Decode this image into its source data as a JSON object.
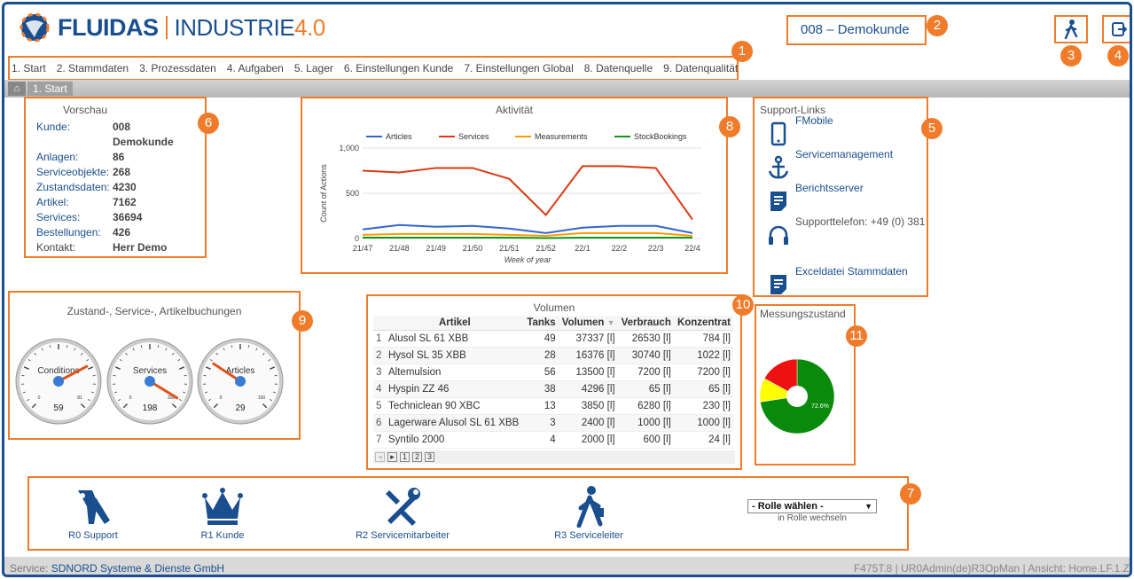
{
  "header": {
    "logo_brand": "FLUIDAS",
    "logo_product": "INDUSTRIE",
    "logo_version": "4.0",
    "customer": "008 – Demokunde",
    "user_icon": "walking-person-icon",
    "logout_icon": "logout-icon"
  },
  "badges": [
    "1",
    "2",
    "3",
    "4",
    "5",
    "6",
    "7",
    "8",
    "9",
    "10",
    "11"
  ],
  "nav": {
    "items": [
      "1. Start",
      "2. Stammdaten",
      "3. Prozessdaten",
      "4. Aufgaben",
      "5. Lager",
      "6. Einstellungen Kunde",
      "7. Einstellungen Global",
      "8. Datenquelle",
      "9. Datenqualität"
    ]
  },
  "breadcrumb": {
    "current": "1. Start"
  },
  "vorschau": {
    "title": "Vorschau",
    "rows": [
      {
        "k": "Kunde:",
        "v": "008 Demokunde"
      },
      {
        "k": "Anlagen:",
        "v": "86"
      },
      {
        "k": "Serviceobjekte:",
        "v": "268"
      },
      {
        "k": "Zustandsdaten:",
        "v": "4230"
      },
      {
        "k": "Artikel:",
        "v": "7162"
      },
      {
        "k": "Services:",
        "v": "36694"
      },
      {
        "k": "Bestellungen:",
        "v": "426"
      },
      {
        "k": "Kontakt:",
        "v": "Herr Demo"
      }
    ]
  },
  "activity": {
    "title": "Aktivität",
    "chart_data": {
      "type": "line",
      "title": "Aktivität",
      "xlabel": "Week of year",
      "ylabel": "Count of Actions",
      "x": [
        "21/47",
        "21/48",
        "21/49",
        "21/50",
        "21/51",
        "21/52",
        "22/1",
        "22/2",
        "22/3",
        "22/4"
      ],
      "ylim": [
        0,
        1000
      ],
      "yticks": [
        "0",
        "500",
        "1,000"
      ],
      "series": [
        {
          "name": "Articles",
          "color": "#3366cc",
          "values": [
            100,
            150,
            130,
            140,
            110,
            60,
            120,
            140,
            140,
            60
          ]
        },
        {
          "name": "Services",
          "color": "#dc3912",
          "values": [
            750,
            730,
            780,
            780,
            660,
            260,
            800,
            800,
            780,
            210
          ]
        },
        {
          "name": "Measurements",
          "color": "#ff9900",
          "values": [
            40,
            50,
            50,
            50,
            40,
            30,
            60,
            60,
            60,
            30
          ]
        },
        {
          "name": "StockBookings",
          "color": "#109618",
          "values": [
            10,
            10,
            10,
            10,
            10,
            5,
            10,
            10,
            10,
            10
          ]
        }
      ],
      "legend": "top"
    }
  },
  "support": {
    "title": "Support-Links",
    "links": [
      {
        "label": "FMobile",
        "icon": "mobile-phone-icon"
      },
      {
        "label": "Servicemanagement",
        "icon": "anchor-icon"
      },
      {
        "label": "Berichtsserver",
        "icon": "document-icon"
      },
      {
        "label": "Supporttelefon: +49 (0) 381",
        "icon": "headset-icon"
      },
      {
        "label": "Exceldatei Stammdaten",
        "icon": "document-icon"
      }
    ]
  },
  "gauges": {
    "title": "Zustand-, Service-, Artikelbuchungen",
    "items": [
      {
        "label": "Conditions",
        "value": "59",
        "min": "0",
        "max": "81",
        "fraction": 0.73
      },
      {
        "label": "Services",
        "value": "198",
        "min": "0",
        "max": "208",
        "fraction": 0.95
      },
      {
        "label": "Articles",
        "value": "29",
        "min": "0",
        "max": "100",
        "fraction": 0.29
      }
    ]
  },
  "volumen": {
    "title": "Volumen",
    "headers": [
      "Artikel",
      "Tanks",
      "Volumen",
      "Verbrauch",
      "Konzentrat"
    ],
    "rows": [
      [
        "1",
        "Alusol SL 61 XBB",
        "49",
        "37337 [l]",
        "26530 [l]",
        "784 [l]"
      ],
      [
        "2",
        "Hysol SL 35 XBB",
        "28",
        "16376 [l]",
        "30740 [l]",
        "1022 [l]"
      ],
      [
        "3",
        "Altemulsion",
        "56",
        "13500 [l]",
        "7200 [l]",
        "7200 [l]"
      ],
      [
        "4",
        "Hyspin ZZ 46",
        "38",
        "4296 [l]",
        "65 [l]",
        "65 [l]"
      ],
      [
        "5",
        "Techniclean 90 XBC",
        "13",
        "3850 [l]",
        "6280 [l]",
        "230 [l]"
      ],
      [
        "6",
        "Lagerware Alusol SL 61 XBB",
        "3",
        "2400 [l]",
        "1000 [l]",
        "1000 [l]"
      ],
      [
        "7",
        "Syntilo 2000",
        "4",
        "2000 [l]",
        "600 [l]",
        "24 [l]"
      ]
    ],
    "pages": [
      "1",
      "2",
      "3"
    ]
  },
  "messung": {
    "title": "Messungszustand",
    "chart_data": {
      "type": "pie",
      "slices": [
        {
          "label": "green",
          "value": 72.6,
          "color": "#0a8a0a"
        },
        {
          "label": "yellow",
          "value": 10.4,
          "color": "#ffff00"
        },
        {
          "label": "red",
          "value": 17.0,
          "color": "#ee1111"
        }
      ],
      "label": "72.6%"
    }
  },
  "roles": {
    "items": [
      {
        "label": "R0 Support",
        "icon": "keys-icon"
      },
      {
        "label": "R1 Kunde",
        "icon": "crown-icon"
      },
      {
        "label": "R2 Servicemitarbeiter",
        "icon": "tools-icon"
      },
      {
        "label": "R3 Serviceleiter",
        "icon": "walking-person-icon"
      }
    ],
    "select_value": "- Rolle wählen -",
    "select_caption": "in Rolle wechseln"
  },
  "footer": {
    "service_label": "Service:",
    "service_name": "SDNORD Systeme & Dienste GmbH",
    "right": "F475T.8 | UR0Admin(de)R3OpMan | Ansicht: Home.LF.1.Z"
  }
}
